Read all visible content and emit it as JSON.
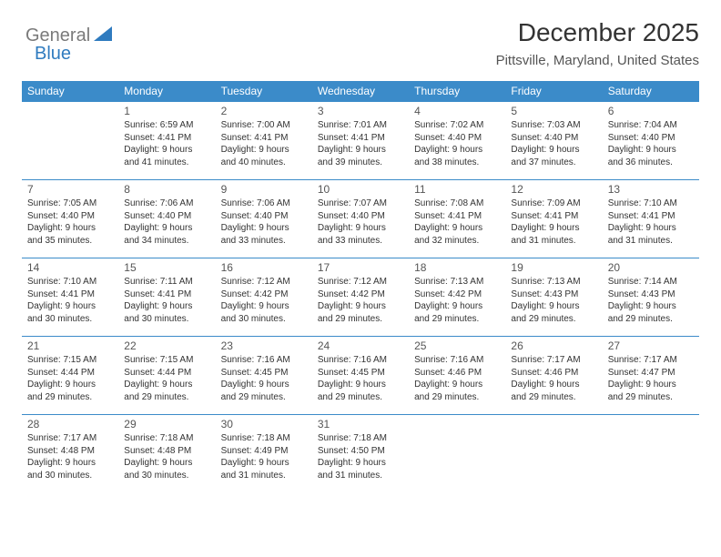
{
  "logo": {
    "text1": "General",
    "text2": "Blue",
    "icon_color": "#2f7bbf"
  },
  "header": {
    "title": "December 2025",
    "subtitle": "Pittsville, Maryland, United States"
  },
  "colors": {
    "header_bg": "#3b8bc9",
    "header_text": "#ffffff",
    "border": "#3b8bc9",
    "text": "#333333",
    "muted": "#555555"
  },
  "weekdays": [
    "Sunday",
    "Monday",
    "Tuesday",
    "Wednesday",
    "Thursday",
    "Friday",
    "Saturday"
  ],
  "weeks": [
    [
      null,
      {
        "d": "1",
        "sr": "6:59 AM",
        "ss": "4:41 PM",
        "dl": "9 hours and 41 minutes."
      },
      {
        "d": "2",
        "sr": "7:00 AM",
        "ss": "4:41 PM",
        "dl": "9 hours and 40 minutes."
      },
      {
        "d": "3",
        "sr": "7:01 AM",
        "ss": "4:41 PM",
        "dl": "9 hours and 39 minutes."
      },
      {
        "d": "4",
        "sr": "7:02 AM",
        "ss": "4:40 PM",
        "dl": "9 hours and 38 minutes."
      },
      {
        "d": "5",
        "sr": "7:03 AM",
        "ss": "4:40 PM",
        "dl": "9 hours and 37 minutes."
      },
      {
        "d": "6",
        "sr": "7:04 AM",
        "ss": "4:40 PM",
        "dl": "9 hours and 36 minutes."
      }
    ],
    [
      {
        "d": "7",
        "sr": "7:05 AM",
        "ss": "4:40 PM",
        "dl": "9 hours and 35 minutes."
      },
      {
        "d": "8",
        "sr": "7:06 AM",
        "ss": "4:40 PM",
        "dl": "9 hours and 34 minutes."
      },
      {
        "d": "9",
        "sr": "7:06 AM",
        "ss": "4:40 PM",
        "dl": "9 hours and 33 minutes."
      },
      {
        "d": "10",
        "sr": "7:07 AM",
        "ss": "4:40 PM",
        "dl": "9 hours and 33 minutes."
      },
      {
        "d": "11",
        "sr": "7:08 AM",
        "ss": "4:41 PM",
        "dl": "9 hours and 32 minutes."
      },
      {
        "d": "12",
        "sr": "7:09 AM",
        "ss": "4:41 PM",
        "dl": "9 hours and 31 minutes."
      },
      {
        "d": "13",
        "sr": "7:10 AM",
        "ss": "4:41 PM",
        "dl": "9 hours and 31 minutes."
      }
    ],
    [
      {
        "d": "14",
        "sr": "7:10 AM",
        "ss": "4:41 PM",
        "dl": "9 hours and 30 minutes."
      },
      {
        "d": "15",
        "sr": "7:11 AM",
        "ss": "4:41 PM",
        "dl": "9 hours and 30 minutes."
      },
      {
        "d": "16",
        "sr": "7:12 AM",
        "ss": "4:42 PM",
        "dl": "9 hours and 30 minutes."
      },
      {
        "d": "17",
        "sr": "7:12 AM",
        "ss": "4:42 PM",
        "dl": "9 hours and 29 minutes."
      },
      {
        "d": "18",
        "sr": "7:13 AM",
        "ss": "4:42 PM",
        "dl": "9 hours and 29 minutes."
      },
      {
        "d": "19",
        "sr": "7:13 AM",
        "ss": "4:43 PM",
        "dl": "9 hours and 29 minutes."
      },
      {
        "d": "20",
        "sr": "7:14 AM",
        "ss": "4:43 PM",
        "dl": "9 hours and 29 minutes."
      }
    ],
    [
      {
        "d": "21",
        "sr": "7:15 AM",
        "ss": "4:44 PM",
        "dl": "9 hours and 29 minutes."
      },
      {
        "d": "22",
        "sr": "7:15 AM",
        "ss": "4:44 PM",
        "dl": "9 hours and 29 minutes."
      },
      {
        "d": "23",
        "sr": "7:16 AM",
        "ss": "4:45 PM",
        "dl": "9 hours and 29 minutes."
      },
      {
        "d": "24",
        "sr": "7:16 AM",
        "ss": "4:45 PM",
        "dl": "9 hours and 29 minutes."
      },
      {
        "d": "25",
        "sr": "7:16 AM",
        "ss": "4:46 PM",
        "dl": "9 hours and 29 minutes."
      },
      {
        "d": "26",
        "sr": "7:17 AM",
        "ss": "4:46 PM",
        "dl": "9 hours and 29 minutes."
      },
      {
        "d": "27",
        "sr": "7:17 AM",
        "ss": "4:47 PM",
        "dl": "9 hours and 29 minutes."
      }
    ],
    [
      {
        "d": "28",
        "sr": "7:17 AM",
        "ss": "4:48 PM",
        "dl": "9 hours and 30 minutes."
      },
      {
        "d": "29",
        "sr": "7:18 AM",
        "ss": "4:48 PM",
        "dl": "9 hours and 30 minutes."
      },
      {
        "d": "30",
        "sr": "7:18 AM",
        "ss": "4:49 PM",
        "dl": "9 hours and 31 minutes."
      },
      {
        "d": "31",
        "sr": "7:18 AM",
        "ss": "4:50 PM",
        "dl": "9 hours and 31 minutes."
      },
      null,
      null,
      null
    ]
  ],
  "labels": {
    "sunrise": "Sunrise: ",
    "sunset": "Sunset: ",
    "daylight": "Daylight: "
  }
}
